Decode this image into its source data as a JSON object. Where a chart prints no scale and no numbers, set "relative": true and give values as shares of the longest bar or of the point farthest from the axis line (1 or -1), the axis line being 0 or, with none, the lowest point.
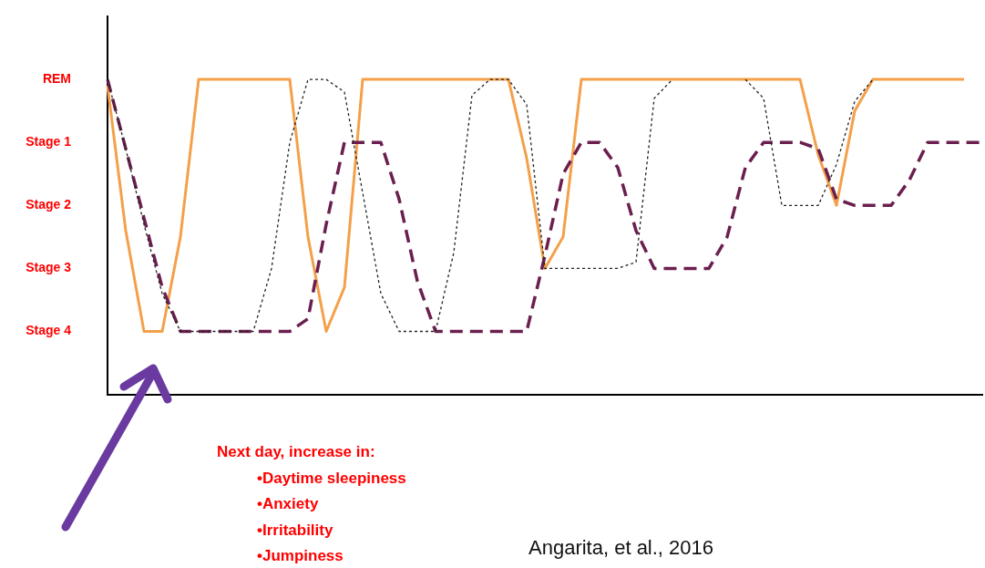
{
  "chart_data": {
    "type": "line",
    "categories": [
      null,
      null,
      null,
      null,
      null,
      null,
      null,
      null,
      null,
      null,
      null,
      null,
      null,
      null,
      null,
      null,
      null,
      null,
      null,
      null,
      null,
      null,
      null,
      null,
      null,
      null,
      null,
      null,
      null,
      null,
      null,
      null,
      null,
      null,
      null,
      null,
      null,
      null,
      null,
      null,
      null,
      null,
      null,
      null,
      null,
      null,
      null,
      null,
      null
    ],
    "relative": true,
    "series": [
      {
        "color": "#f4a04a",
        "line_style": "solid",
        "values": [
          0.98,
          0.52,
          0.2,
          0.2,
          0.5,
          1,
          1,
          1,
          1,
          1,
          1,
          0.5,
          0.2,
          0.34,
          1,
          1,
          1,
          1,
          1,
          1,
          1,
          1,
          1,
          0.75,
          0.4,
          0.5,
          1,
          1,
          1,
          1,
          1,
          1,
          1,
          1,
          1,
          1,
          1,
          1,
          1,
          0.76,
          0.6,
          0.9,
          1,
          1,
          1,
          1,
          1,
          1,
          null
        ]
      },
      {
        "color": "#6b1f4f",
        "line_style": "dashed",
        "values": [
          1,
          0.78,
          0.56,
          0.34,
          0.2,
          0.2,
          0.2,
          0.2,
          0.2,
          0.2,
          0.2,
          0.24,
          0.54,
          0.8,
          0.8,
          0.8,
          0.62,
          0.36,
          0.2,
          0.2,
          0.2,
          0.2,
          0.2,
          0.2,
          0.44,
          0.7,
          0.8,
          0.8,
          0.72,
          0.52,
          0.4,
          0.4,
          0.4,
          0.4,
          0.5,
          0.72,
          0.8,
          0.8,
          0.8,
          0.78,
          0.62,
          0.6,
          0.6,
          0.6,
          0.68,
          0.8,
          0.8,
          0.8,
          0.8
        ]
      },
      {
        "color": "#222222",
        "line_style": "dotted",
        "values": [
          1,
          0.78,
          0.54,
          0.32,
          0.2,
          0.2,
          0.2,
          0.2,
          0.2,
          0.4,
          0.8,
          1,
          1,
          0.96,
          0.64,
          0.32,
          0.2,
          0.2,
          0.2,
          0.45,
          0.95,
          1,
          1,
          0.92,
          0.4,
          0.4,
          0.4,
          0.4,
          0.4,
          0.42,
          0.94,
          1,
          null,
          null,
          null,
          1,
          0.94,
          0.6,
          0.6,
          0.6,
          0.73,
          0.93,
          1,
          null,
          null,
          null,
          null,
          null,
          null
        ]
      }
    ],
    "grid": false,
    "legend": false,
    "marker": "none",
    "annotations": [
      "REM",
      "Stage 1",
      "Stage 2",
      "Stage 3",
      "Stage 4",
      "Next day, increase in:",
      "•Daytime sleepiness",
      "•Anxiety",
      "•Irritability",
      "•Jumpiness",
      "Angarita, et al., 2016"
    ]
  }
}
